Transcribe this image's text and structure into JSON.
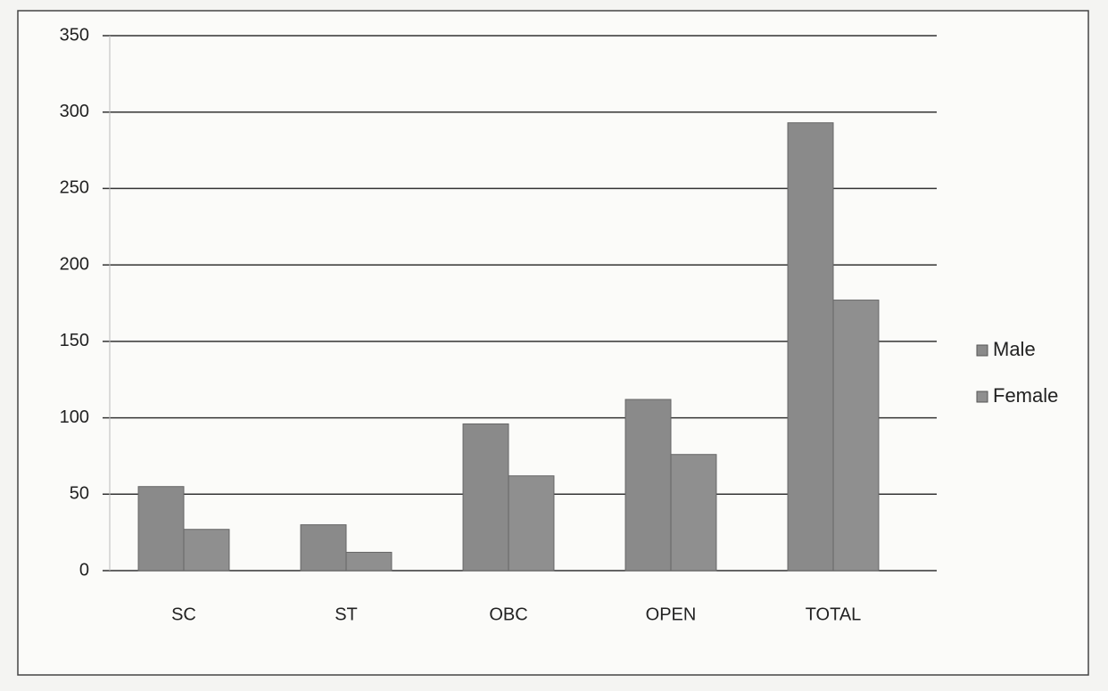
{
  "chart_data": {
    "type": "bar",
    "categories": [
      "SC",
      "ST",
      "OBC",
      "OPEN",
      "TOTAL"
    ],
    "series": [
      {
        "name": "Male",
        "color": "#8a8a8a",
        "values": [
          55,
          30,
          96,
          112,
          293
        ]
      },
      {
        "name": "Female",
        "color": "#8f8f8f",
        "values": [
          27,
          12,
          62,
          76,
          177
        ]
      }
    ],
    "ylim": [
      0,
      350
    ],
    "yticks": [
      0,
      50,
      100,
      150,
      200,
      250,
      300,
      350
    ],
    "grid": true,
    "legend": "right"
  }
}
